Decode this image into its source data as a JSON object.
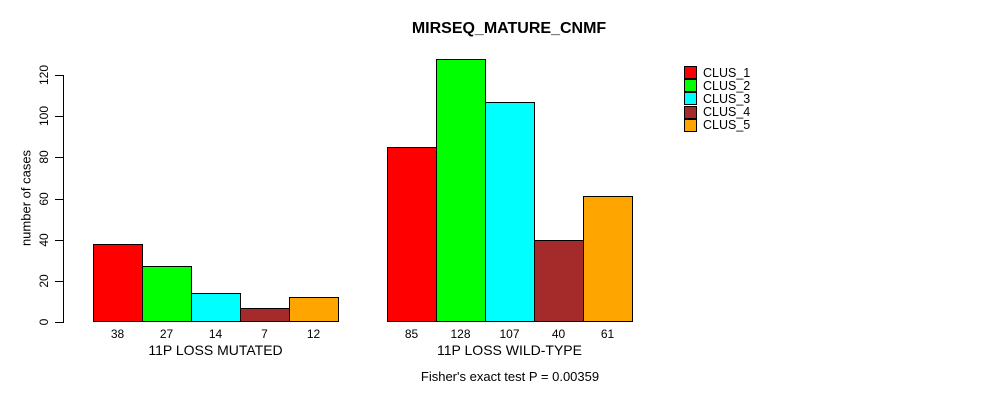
{
  "chart_data": {
    "type": "bar",
    "title": "MIRSEQ_MATURE_CNMF",
    "ylabel": "number of cases",
    "xlabel": "",
    "yticks": [
      0,
      20,
      40,
      60,
      80,
      100,
      120
    ],
    "ylim": [
      0,
      130
    ],
    "grid": false,
    "legend_position": "right",
    "background_color": "#FFFFFF",
    "text_color": "#000000",
    "bar_border_color": "#000000",
    "categories": [
      "11P LOSS MUTATED",
      "11P LOSS WILD-TYPE"
    ],
    "series": [
      {
        "name": "CLUS_1",
        "color": "#FF0000",
        "values": [
          38,
          85
        ]
      },
      {
        "name": "CLUS_2",
        "color": "#00FF00",
        "values": [
          27,
          128
        ]
      },
      {
        "name": "CLUS_3",
        "color": "#00FFFF",
        "values": [
          14,
          107
        ]
      },
      {
        "name": "CLUS_4",
        "color": "#A52A2A",
        "values": [
          7,
          40
        ]
      },
      {
        "name": "CLUS_5",
        "color": "#FFA500",
        "values": [
          12,
          61
        ]
      }
    ],
    "bar_value_labels": {
      "11P LOSS MUTATED": [
        38,
        27,
        14,
        7,
        12
      ],
      "11P LOSS WILD-TYPE": [
        85,
        128,
        107,
        40,
        61
      ]
    },
    "annotation": "Fisher's exact test P = 0.00359"
  },
  "legend": {
    "items": [
      {
        "label": "CLUS_1",
        "color": "#FF0000"
      },
      {
        "label": "CLUS_2",
        "color": "#00FF00"
      },
      {
        "label": "CLUS_3",
        "color": "#00FFFF"
      },
      {
        "label": "CLUS_4",
        "color": "#A52A2A"
      },
      {
        "label": "CLUS_5",
        "color": "#FFA500"
      }
    ]
  }
}
